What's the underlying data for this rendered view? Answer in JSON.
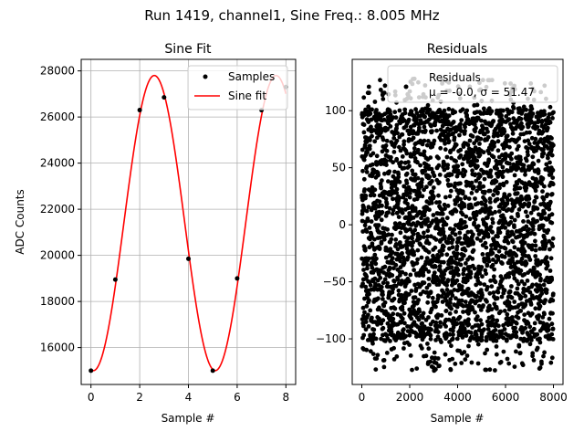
{
  "suptitle": "Run 1419, channel1, Sine Freq.: 8.005 MHz",
  "colors": {
    "samples": "#000000",
    "fit": "#ff0000",
    "grid": "#b0b0b0",
    "residuals": "#000000"
  },
  "chart_data": [
    {
      "type": "line",
      "title": "Sine Fit",
      "xlabel": "Sample #",
      "ylabel": "ADC Counts",
      "xlim": [
        -0.4,
        8.4
      ],
      "ylim": [
        14400,
        28500
      ],
      "xticks": [
        0,
        2,
        4,
        6,
        8
      ],
      "yticks": [
        16000,
        18000,
        20000,
        22000,
        24000,
        26000,
        28000
      ],
      "grid": true,
      "legend": {
        "placement": "top-right",
        "entries": [
          "Samples",
          "Sine fit"
        ]
      },
      "series": [
        {
          "name": "Samples",
          "style": "markers",
          "x": [
            0,
            1,
            2,
            3,
            4,
            5,
            6,
            7,
            8
          ],
          "y": [
            15000,
            18950,
            26300,
            26850,
            19850,
            15000,
            19000,
            26300,
            27300
          ]
        },
        {
          "name": "Sine fit",
          "style": "line",
          "offset": 21400,
          "amplitude": 6400,
          "period": 5.0,
          "peak_x": 2.6,
          "x_start": 0,
          "x_end": 8
        }
      ]
    },
    {
      "type": "scatter",
      "title": "Residuals",
      "xlabel": "Sample #",
      "xlim": [
        -400,
        8400
      ],
      "ylim": [
        -140,
        145
      ],
      "xticks": [
        0,
        2000,
        4000,
        6000,
        8000
      ],
      "yticks": [
        -100,
        -50,
        0,
        50,
        100
      ],
      "grid": false,
      "legend": {
        "placement": "top-right",
        "entries": [
          "Residuals",
          "μ = -0.0, σ = 51.47"
        ]
      },
      "series": [
        {
          "name": "Residuals",
          "n_points": 8000,
          "x_range": [
            0,
            8000
          ],
          "y_range": [
            -128,
            128
          ],
          "mean": -0.0,
          "sigma": 51.47
        }
      ]
    }
  ]
}
